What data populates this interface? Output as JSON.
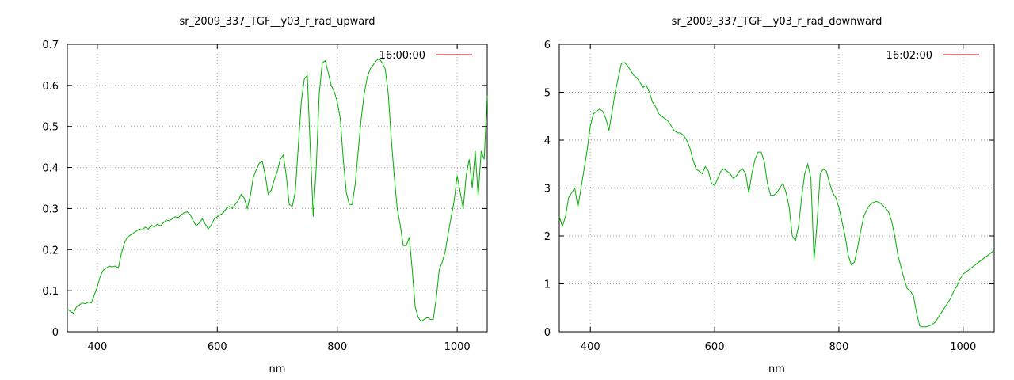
{
  "chart_data": [
    {
      "type": "line",
      "title": "sr_2009_337_TGF__y03_r_rad_upward",
      "xlabel": "nm",
      "ylabel": "",
      "xlim": [
        350,
        1050
      ],
      "ylim": [
        0,
        0.7
      ],
      "xticks": [
        400,
        600,
        800,
        1000
      ],
      "yticks": [
        0,
        0.1,
        0.2,
        0.3,
        0.4,
        0.5,
        0.6,
        0.7
      ],
      "ytick_labels": [
        "0",
        "0.1",
        "0.2",
        "0.3",
        "0.4",
        "0.5",
        "0.6",
        "0.7"
      ],
      "grid": true,
      "legend_position": "top-right",
      "series": [
        {
          "name": "16:00:00",
          "color": "#00b000",
          "legend_color": "#d00000",
          "x": [
            350,
            355,
            360,
            365,
            370,
            375,
            380,
            385,
            390,
            395,
            400,
            405,
            410,
            415,
            420,
            425,
            430,
            435,
            440,
            445,
            450,
            455,
            460,
            465,
            470,
            475,
            480,
            485,
            490,
            495,
            500,
            505,
            510,
            515,
            520,
            525,
            530,
            535,
            540,
            545,
            550,
            555,
            560,
            565,
            570,
            575,
            580,
            585,
            590,
            595,
            600,
            605,
            610,
            615,
            620,
            625,
            630,
            635,
            640,
            645,
            650,
            655,
            660,
            665,
            670,
            675,
            680,
            685,
            690,
            695,
            700,
            705,
            710,
            715,
            720,
            725,
            730,
            735,
            740,
            745,
            750,
            755,
            760,
            765,
            770,
            775,
            780,
            785,
            790,
            795,
            800,
            805,
            810,
            815,
            820,
            825,
            830,
            835,
            840,
            845,
            850,
            855,
            860,
            865,
            870,
            875,
            880,
            885,
            890,
            895,
            900,
            905,
            910,
            915,
            920,
            925,
            930,
            935,
            940,
            945,
            950,
            955,
            960,
            965,
            970,
            975,
            980,
            985,
            990,
            995,
            1000,
            1005,
            1010,
            1015,
            1020,
            1025,
            1030,
            1035,
            1040,
            1045,
            1050
          ],
          "y": [
            0.055,
            0.05,
            0.045,
            0.06,
            0.065,
            0.07,
            0.068,
            0.072,
            0.07,
            0.09,
            0.11,
            0.135,
            0.15,
            0.155,
            0.16,
            0.158,
            0.16,
            0.155,
            0.19,
            0.215,
            0.23,
            0.235,
            0.24,
            0.245,
            0.25,
            0.248,
            0.255,
            0.25,
            0.26,
            0.255,
            0.262,
            0.258,
            0.265,
            0.272,
            0.27,
            0.275,
            0.28,
            0.278,
            0.285,
            0.29,
            0.292,
            0.285,
            0.27,
            0.258,
            0.265,
            0.275,
            0.262,
            0.25,
            0.26,
            0.275,
            0.28,
            0.285,
            0.29,
            0.3,
            0.305,
            0.3,
            0.31,
            0.32,
            0.335,
            0.325,
            0.3,
            0.33,
            0.375,
            0.395,
            0.41,
            0.415,
            0.38,
            0.335,
            0.345,
            0.37,
            0.39,
            0.42,
            0.43,
            0.38,
            0.31,
            0.305,
            0.34,
            0.45,
            0.56,
            0.615,
            0.625,
            0.45,
            0.28,
            0.4,
            0.58,
            0.655,
            0.66,
            0.63,
            0.6,
            0.585,
            0.56,
            0.52,
            0.42,
            0.34,
            0.31,
            0.31,
            0.36,
            0.44,
            0.52,
            0.58,
            0.62,
            0.64,
            0.65,
            0.66,
            0.665,
            0.655,
            0.64,
            0.58,
            0.47,
            0.38,
            0.3,
            0.26,
            0.21,
            0.21,
            0.23,
            0.15,
            0.06,
            0.035,
            0.025,
            0.03,
            0.035,
            0.03,
            0.03,
            0.08,
            0.15,
            0.17,
            0.195,
            0.24,
            0.28,
            0.32,
            0.38,
            0.34,
            0.3,
            0.38,
            0.42,
            0.35,
            0.44,
            0.33,
            0.44,
            0.42,
            0.575
          ]
        }
      ]
    },
    {
      "type": "line",
      "title": "sr_2009_337_TGF__y03_r_rad_downward",
      "xlabel": "nm",
      "ylabel": "",
      "xlim": [
        350,
        1050
      ],
      "ylim": [
        0,
        6
      ],
      "xticks": [
        400,
        600,
        800,
        1000
      ],
      "yticks": [
        0,
        1,
        2,
        3,
        4,
        5,
        6
      ],
      "ytick_labels": [
        "0",
        "1",
        "2",
        "3",
        "4",
        "5",
        "6"
      ],
      "grid": true,
      "legend_position": "top-right",
      "series": [
        {
          "name": "16:02:00",
          "color": "#00b000",
          "legend_color": "#d00000",
          "x": [
            350,
            355,
            360,
            365,
            370,
            375,
            380,
            385,
            390,
            395,
            400,
            405,
            410,
            415,
            420,
            425,
            430,
            435,
            440,
            445,
            450,
            455,
            460,
            465,
            470,
            475,
            480,
            485,
            490,
            495,
            500,
            505,
            510,
            515,
            520,
            525,
            530,
            535,
            540,
            545,
            550,
            555,
            560,
            565,
            570,
            575,
            580,
            585,
            590,
            595,
            600,
            605,
            610,
            615,
            620,
            625,
            630,
            635,
            640,
            645,
            650,
            655,
            660,
            665,
            670,
            675,
            680,
            685,
            690,
            695,
            700,
            705,
            710,
            715,
            720,
            725,
            730,
            735,
            740,
            745,
            750,
            755,
            760,
            765,
            770,
            775,
            780,
            785,
            790,
            795,
            800,
            805,
            810,
            815,
            820,
            825,
            830,
            835,
            840,
            845,
            850,
            855,
            860,
            865,
            870,
            875,
            880,
            885,
            890,
            895,
            900,
            905,
            910,
            915,
            920,
            925,
            930,
            935,
            940,
            945,
            950,
            955,
            960,
            965,
            970,
            975,
            980,
            985,
            990,
            995,
            1000,
            1005,
            1010,
            1015,
            1020,
            1025,
            1030,
            1035,
            1040,
            1045,
            1050
          ],
          "y": [
            2.4,
            2.2,
            2.4,
            2.8,
            2.9,
            3.0,
            2.6,
            3.0,
            3.4,
            3.8,
            4.3,
            4.55,
            4.6,
            4.65,
            4.6,
            4.45,
            4.2,
            4.6,
            5.0,
            5.3,
            5.6,
            5.62,
            5.55,
            5.45,
            5.35,
            5.3,
            5.2,
            5.1,
            5.15,
            5.0,
            4.8,
            4.7,
            4.55,
            4.5,
            4.45,
            4.4,
            4.3,
            4.2,
            4.15,
            4.15,
            4.1,
            4.0,
            3.85,
            3.6,
            3.4,
            3.35,
            3.3,
            3.45,
            3.35,
            3.1,
            3.05,
            3.2,
            3.35,
            3.4,
            3.35,
            3.3,
            3.2,
            3.25,
            3.35,
            3.4,
            3.3,
            2.9,
            3.3,
            3.6,
            3.75,
            3.75,
            3.55,
            3.1,
            2.85,
            2.85,
            2.9,
            3.0,
            3.1,
            2.9,
            2.6,
            2.0,
            1.9,
            2.2,
            2.8,
            3.3,
            3.5,
            3.2,
            1.5,
            2.3,
            3.3,
            3.4,
            3.35,
            3.1,
            2.9,
            2.8,
            2.6,
            2.3,
            2.0,
            1.6,
            1.4,
            1.45,
            1.75,
            2.1,
            2.4,
            2.55,
            2.65,
            2.7,
            2.72,
            2.7,
            2.65,
            2.58,
            2.5,
            2.3,
            2.0,
            1.6,
            1.35,
            1.1,
            0.9,
            0.85,
            0.75,
            0.4,
            0.12,
            0.1,
            0.1,
            0.12,
            0.15,
            0.2,
            0.3,
            0.4,
            0.5,
            0.6,
            0.7,
            0.85,
            0.95,
            1.1,
            1.2,
            1.25,
            1.3,
            1.35,
            1.4,
            1.45,
            1.5,
            1.55,
            1.6,
            1.65,
            1.7
          ]
        }
      ]
    }
  ]
}
